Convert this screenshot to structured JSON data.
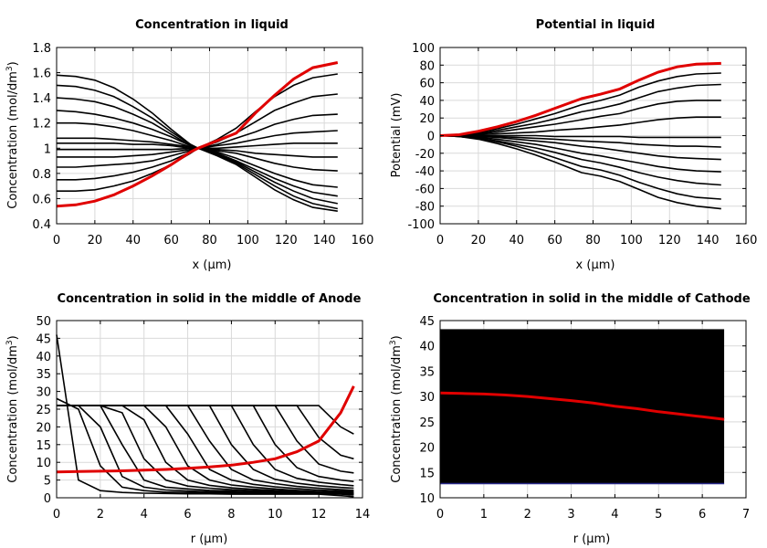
{
  "chart_data": [
    {
      "type": "line",
      "title": "Concentration in liquid",
      "xlabel": "x (µm)",
      "ylabel": "Concentration (mol/dm³)",
      "xlim": [
        0,
        160
      ],
      "ylim": [
        0.4,
        1.8
      ],
      "xticks": [
        "0",
        "20",
        "40",
        "60",
        "80",
        "100",
        "120",
        "140",
        "160"
      ],
      "yticks": [
        "0.4",
        "0.6",
        "0.8",
        "1",
        "1.2",
        "1.4",
        "1.6",
        "1.8"
      ],
      "grid": true,
      "x": [
        0,
        10,
        20,
        30,
        40,
        50,
        60,
        70,
        74,
        84,
        94,
        104,
        114,
        124,
        134,
        147
      ],
      "series": [
        {
          "values": [
            1.58,
            1.57,
            1.54,
            1.48,
            1.39,
            1.28,
            1.15,
            1.03,
            1.0,
            0.94,
            0.87,
            0.77,
            0.67,
            0.59,
            0.53,
            0.5
          ]
        },
        {
          "values": [
            1.5,
            1.49,
            1.46,
            1.41,
            1.33,
            1.24,
            1.13,
            1.03,
            1.0,
            0.95,
            0.88,
            0.79,
            0.7,
            0.62,
            0.56,
            0.52
          ]
        },
        {
          "values": [
            1.4,
            1.39,
            1.37,
            1.33,
            1.27,
            1.2,
            1.11,
            1.02,
            1.0,
            0.95,
            0.89,
            0.81,
            0.73,
            0.66,
            0.6,
            0.56
          ]
        },
        {
          "values": [
            1.3,
            1.29,
            1.27,
            1.24,
            1.2,
            1.15,
            1.09,
            1.02,
            1.0,
            0.96,
            0.9,
            0.83,
            0.76,
            0.7,
            0.65,
            0.62
          ]
        },
        {
          "values": [
            1.2,
            1.2,
            1.19,
            1.17,
            1.14,
            1.1,
            1.06,
            1.01,
            1.0,
            0.97,
            0.92,
            0.86,
            0.8,
            0.75,
            0.71,
            0.69
          ]
        },
        {
          "values": [
            1.08,
            1.08,
            1.08,
            1.07,
            1.06,
            1.05,
            1.03,
            1.01,
            1.0,
            0.98,
            0.96,
            0.92,
            0.88,
            0.85,
            0.83,
            0.82
          ]
        },
        {
          "values": [
            1.04,
            1.04,
            1.04,
            1.04,
            1.03,
            1.03,
            1.02,
            1.0,
            1.0,
            0.99,
            0.98,
            0.96,
            0.95,
            0.94,
            0.93,
            0.93
          ]
        },
        {
          "values": [
            0.99,
            0.99,
            0.99,
            0.99,
            0.99,
            0.99,
            0.99,
            1.0,
            1.0,
            1.0,
            1.01,
            1.02,
            1.03,
            1.04,
            1.04,
            1.04
          ]
        },
        {
          "values": [
            0.93,
            0.93,
            0.93,
            0.93,
            0.94,
            0.95,
            0.97,
            0.99,
            1.0,
            1.02,
            1.04,
            1.07,
            1.1,
            1.12,
            1.13,
            1.14
          ]
        },
        {
          "values": [
            0.85,
            0.85,
            0.86,
            0.87,
            0.88,
            0.9,
            0.94,
            0.98,
            1.0,
            1.03,
            1.08,
            1.13,
            1.19,
            1.23,
            1.26,
            1.27
          ]
        },
        {
          "values": [
            0.75,
            0.75,
            0.76,
            0.78,
            0.81,
            0.85,
            0.9,
            0.97,
            1.0,
            1.05,
            1.12,
            1.21,
            1.3,
            1.36,
            1.41,
            1.43
          ]
        },
        {
          "values": [
            0.66,
            0.66,
            0.67,
            0.7,
            0.74,
            0.8,
            0.87,
            0.96,
            1.0,
            1.07,
            1.16,
            1.29,
            1.41,
            1.5,
            1.56,
            1.59
          ]
        }
      ],
      "highlight": {
        "values": [
          0.54,
          0.55,
          0.58,
          0.63,
          0.7,
          0.78,
          0.87,
          0.97,
          1.0,
          1.06,
          1.12,
          1.28,
          1.42,
          1.55,
          1.64,
          1.68
        ]
      }
    },
    {
      "type": "line",
      "title": "Potential in liquid",
      "xlabel": "x (µm)",
      "ylabel": "Potential (mV)",
      "xlim": [
        0,
        160
      ],
      "ylim": [
        -100,
        100
      ],
      "xticks": [
        "0",
        "20",
        "40",
        "60",
        "80",
        "100",
        "120",
        "140",
        "160"
      ],
      "yticks": [
        "-100",
        "-80",
        "-60",
        "-40",
        "-20",
        "0",
        "20",
        "40",
        "60",
        "80",
        "100"
      ],
      "grid": true,
      "x": [
        0,
        10,
        20,
        30,
        40,
        50,
        60,
        74,
        84,
        94,
        104,
        114,
        124,
        134,
        147
      ],
      "series": [
        {
          "values": [
            0,
            -1,
            -4,
            -9,
            -15,
            -22,
            -30,
            -42,
            -46,
            -52,
            -61,
            -70,
            -76,
            -80,
            -83
          ]
        },
        {
          "values": [
            0,
            -1,
            -3,
            -7,
            -12,
            -18,
            -25,
            -35,
            -39,
            -45,
            -53,
            -60,
            -66,
            -70,
            -72
          ]
        },
        {
          "values": [
            0,
            -1,
            -3,
            -6,
            -10,
            -14,
            -19,
            -27,
            -31,
            -36,
            -42,
            -47,
            -51,
            -54,
            -56
          ]
        },
        {
          "values": [
            0,
            0,
            -2,
            -4,
            -7,
            -10,
            -14,
            -20,
            -23,
            -27,
            -31,
            -35,
            -38,
            -40,
            -41
          ]
        },
        {
          "values": [
            0,
            0,
            -1,
            -2,
            -4,
            -6,
            -8,
            -12,
            -14,
            -17,
            -20,
            -23,
            -25,
            -26,
            -27
          ]
        },
        {
          "values": [
            0,
            0,
            -1,
            -1,
            -2,
            -3,
            -4,
            -6,
            -7,
            -8,
            -10,
            -11,
            -12,
            -12,
            -13
          ]
        },
        {
          "values": [
            0,
            0,
            0,
            0,
            0,
            0,
            -1,
            -1,
            -1,
            -1,
            -2,
            -2,
            -2,
            -2,
            -2
          ]
        },
        {
          "values": [
            0,
            0,
            1,
            2,
            3,
            4,
            6,
            8,
            10,
            12,
            15,
            18,
            20,
            21,
            21
          ]
        },
        {
          "values": [
            0,
            1,
            2,
            4,
            7,
            10,
            13,
            18,
            22,
            25,
            31,
            36,
            39,
            40,
            40
          ]
        },
        {
          "values": [
            0,
            1,
            3,
            6,
            10,
            14,
            19,
            27,
            31,
            36,
            43,
            50,
            54,
            57,
            58
          ]
        },
        {
          "values": [
            0,
            1,
            4,
            8,
            13,
            19,
            25,
            35,
            40,
            46,
            55,
            62,
            67,
            70,
            71
          ]
        }
      ],
      "highlight": {
        "values": [
          0,
          1,
          5,
          10,
          16,
          23,
          31,
          42,
          47,
          53,
          63,
          72,
          78,
          81,
          82
        ]
      }
    },
    {
      "type": "line",
      "title": "Concentration in solid in the middle of Anode",
      "xlabel": "r (µm)",
      "ylabel": "Concentration (mol/dm³)",
      "xlim": [
        0,
        14
      ],
      "ylim": [
        0,
        50
      ],
      "xticks": [
        "0",
        "2",
        "4",
        "6",
        "8",
        "10",
        "12",
        "14"
      ],
      "yticks": [
        "0",
        "5",
        "10",
        "15",
        "20",
        "25",
        "30",
        "35",
        "40",
        "45",
        "50"
      ],
      "grid": true,
      "x": [
        0,
        1,
        2,
        3,
        4,
        5,
        6,
        7,
        8,
        9,
        10,
        11,
        12,
        13,
        13.6
      ],
      "series": [
        {
          "values": [
            46,
            5,
            2,
            1.5,
            1.3,
            1.2,
            1.1,
            1.1,
            1.0,
            1.0,
            1.0,
            1.0,
            1.0,
            0.6,
            0.3
          ]
        },
        {
          "values": [
            28,
            25,
            9,
            3,
            2,
            1.6,
            1.5,
            1.4,
            1.3,
            1.2,
            1.2,
            1.1,
            1.1,
            1.0,
            0.8
          ]
        },
        {
          "values": [
            26,
            26,
            20,
            6,
            3,
            2.2,
            1.9,
            1.7,
            1.6,
            1.5,
            1.4,
            1.3,
            1.2,
            1.1,
            1.0
          ]
        },
        {
          "values": [
            26,
            26,
            26,
            15,
            5,
            3,
            2.5,
            2.1,
            1.9,
            1.7,
            1.5,
            1.4,
            1.3,
            1.2,
            1.1
          ]
        },
        {
          "values": [
            26,
            26,
            26,
            24,
            11,
            5,
            3.3,
            2.7,
            2.3,
            2.0,
            1.8,
            1.6,
            1.4,
            1.3,
            1.2
          ]
        },
        {
          "values": [
            26,
            26,
            26,
            26,
            22,
            10,
            5,
            3.5,
            2.8,
            2.4,
            2.1,
            1.8,
            1.6,
            1.4,
            1.3
          ]
        },
        {
          "values": [
            26,
            26,
            26,
            26,
            26,
            20,
            9,
            5,
            3.6,
            3.0,
            2.5,
            2.1,
            1.8,
            1.6,
            1.5
          ]
        },
        {
          "values": [
            26,
            26,
            26,
            26,
            26,
            26,
            18,
            8,
            5,
            3.8,
            3.1,
            2.6,
            2.2,
            1.9,
            1.8
          ]
        },
        {
          "values": [
            26,
            26,
            26,
            26,
            26,
            26,
            26,
            16,
            8,
            5,
            4,
            3.2,
            2.7,
            2.3,
            2.1
          ]
        },
        {
          "values": [
            26,
            26,
            26,
            26,
            26,
            26,
            26,
            26,
            15,
            8,
            5.2,
            4.1,
            3.4,
            2.9,
            2.7
          ]
        },
        {
          "values": [
            26,
            26,
            26,
            26,
            26,
            26,
            26,
            26,
            26,
            15,
            8,
            5.5,
            4.4,
            3.7,
            3.4
          ]
        },
        {
          "values": [
            26,
            26,
            26,
            26,
            26,
            26,
            26,
            26,
            26,
            26,
            15,
            8.5,
            6,
            5,
            4.6
          ]
        },
        {
          "values": [
            26,
            26,
            26,
            26,
            26,
            26,
            26,
            26,
            26,
            26,
            26,
            16,
            9.5,
            7.5,
            7
          ]
        },
        {
          "values": [
            26,
            26,
            26,
            26,
            26,
            26,
            26,
            26,
            26,
            26,
            26,
            26,
            17,
            12,
            11
          ]
        },
        {
          "values": [
            26,
            26,
            26,
            26,
            26,
            26,
            26,
            26,
            26,
            26,
            26,
            26,
            26,
            20,
            18
          ]
        }
      ],
      "highlight": {
        "values": [
          7.3,
          7.4,
          7.5,
          7.6,
          7.8,
          8.0,
          8.3,
          8.7,
          9.2,
          10.0,
          11.0,
          13.0,
          16.0,
          24.0,
          31.5
        ]
      }
    },
    {
      "type": "line",
      "title": "Concentration in solid in the middle of Cathode",
      "xlabel": "r (µm)",
      "ylabel": "Concentration (mol/dm³)",
      "xlim": [
        0,
        7
      ],
      "ylim": [
        10,
        45
      ],
      "xticks": [
        "0",
        "1",
        "2",
        "3",
        "4",
        "5",
        "6",
        "7"
      ],
      "yticks": [
        "10",
        "15",
        "20",
        "25",
        "30",
        "35",
        "40",
        "45"
      ],
      "grid": true,
      "x": [
        0,
        0.5,
        1,
        1.5,
        2,
        2.5,
        3,
        3.5,
        4,
        4.5,
        5,
        5.5,
        6,
        6.5
      ],
      "band": {
        "ymin": 12.8,
        "ymax": 43.3
      },
      "highlight": {
        "values": [
          30.7,
          30.6,
          30.5,
          30.3,
          30.0,
          29.6,
          29.2,
          28.7,
          28.1,
          27.6,
          27.0,
          26.5,
          26.0,
          25.5
        ]
      }
    }
  ]
}
